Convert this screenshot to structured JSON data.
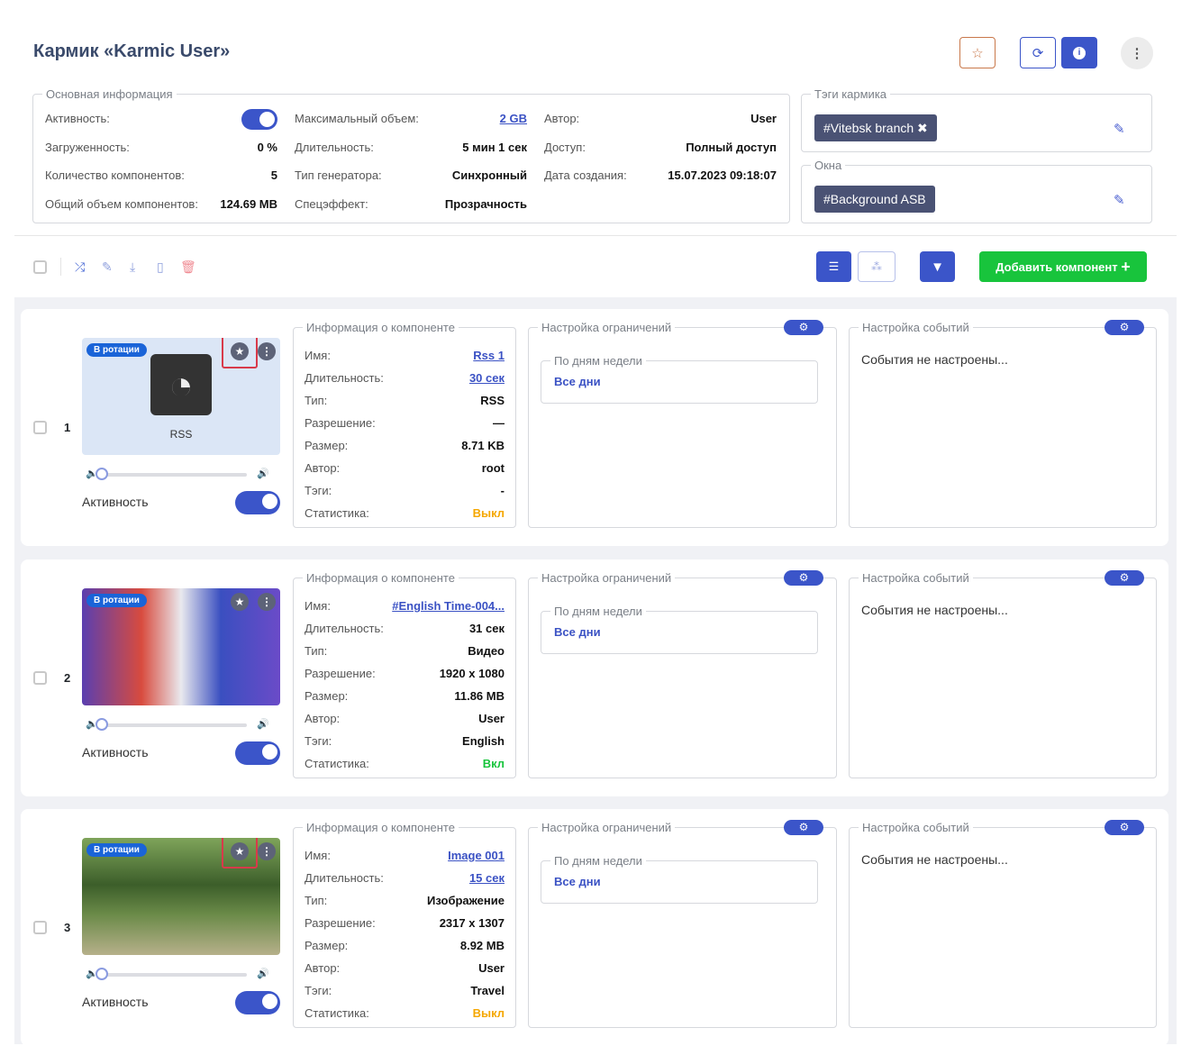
{
  "header": {
    "title": "Кармик «Karmic User»",
    "icons": [
      "star-outline-icon",
      "refresh-icon",
      "info-icon",
      "more-vertical-icon"
    ]
  },
  "basic": {
    "legend": "Основная информация",
    "col1": [
      {
        "label": "Активность:",
        "toggle": true
      },
      {
        "label": "Загруженность:",
        "value": "0 %"
      },
      {
        "label": "Количество компонентов:",
        "value": "5"
      },
      {
        "label": "Общий объем компонентов:",
        "value": "124.69 MB"
      }
    ],
    "col2": [
      {
        "label": "Максимальный объем:",
        "value": "2 GB",
        "link": true
      },
      {
        "label": "Длительность:",
        "value": "5 мин 1 сек"
      },
      {
        "label": "Тип генератора:",
        "value": "Синхронный"
      },
      {
        "label": "Спецэффект:",
        "value": "Прозрачность"
      }
    ],
    "col3": [
      {
        "label": "Автор:",
        "value": "User"
      },
      {
        "label": "Доступ:",
        "value": "Полный доступ"
      },
      {
        "label": "Дата создания:",
        "value": "15.07.2023 09:18:07"
      }
    ]
  },
  "tags": {
    "legend": "Тэги кармика",
    "items": [
      "#Vitebsk branch"
    ]
  },
  "windows": {
    "legend": "Окна",
    "items": [
      "#Background ASB"
    ]
  },
  "toolbar": {
    "add_label": "Добавить компонент",
    "icons": [
      "shuffle-icon",
      "edit-icon",
      "download-icon",
      "file-icon",
      "trash-icon",
      "list-view-icon",
      "tree-view-icon",
      "filter-icon"
    ]
  },
  "colors": {
    "accent": "#3b55c9",
    "green": "#18c43c",
    "orange": "#f5a700",
    "tag": "#4a5274"
  },
  "components": [
    {
      "num": "1",
      "badge": "В ротации",
      "thumb": "rss",
      "thumb_label": "RSS",
      "active_label": "Активность",
      "volume": 0,
      "starred": true,
      "info_legend": "Информация о компоненте",
      "info": [
        [
          "Имя:",
          "Rss 1"
        ],
        [
          "Длительность:",
          "30 сек"
        ],
        [
          "Тип:",
          "RSS"
        ],
        [
          "Разрешение:",
          "—"
        ],
        [
          "Размер:",
          "8.71 KB"
        ],
        [
          "Автор:",
          "root"
        ],
        [
          "Тэги:",
          "-"
        ],
        [
          "Статистика:",
          "Выкл"
        ]
      ],
      "restrict_legend": "Настройка ограничений",
      "days_legend": "По дням недели",
      "days": "Все дни",
      "events_legend": "Настройка событий",
      "events": "События не настроены..."
    },
    {
      "num": "2",
      "badge": "В ротации",
      "thumb": "video",
      "thumb_label": "",
      "active_label": "Активность",
      "volume": 0,
      "starred": false,
      "info_legend": "Информация о компоненте",
      "info": [
        [
          "Имя:",
          "#English Time-004..."
        ],
        [
          "Длительность:",
          "31 сек"
        ],
        [
          "Тип:",
          "Видео"
        ],
        [
          "Разрешение:",
          "1920 x 1080"
        ],
        [
          "Размер:",
          "11.86 MB"
        ],
        [
          "Автор:",
          "User"
        ],
        [
          "Тэги:",
          "English"
        ],
        [
          "Статистика:",
          "Вкл"
        ]
      ],
      "restrict_legend": "Настройка ограничений",
      "days_legend": "По дням недели",
      "days": "Все дни",
      "events_legend": "Настройка событий",
      "events": "События не настроены..."
    },
    {
      "num": "3",
      "badge": "В ротации",
      "thumb": "image",
      "thumb_label": "",
      "active_label": "Активность",
      "volume": 0,
      "starred": true,
      "info_legend": "Информация о компоненте",
      "info": [
        [
          "Имя:",
          "Image 001"
        ],
        [
          "Длительность:",
          "15 сек"
        ],
        [
          "Тип:",
          "Изображение"
        ],
        [
          "Разрешение:",
          "2317 x 1307"
        ],
        [
          "Размер:",
          "8.92 MB"
        ],
        [
          "Автор:",
          "User"
        ],
        [
          "Тэги:",
          "Travel"
        ],
        [
          "Статистика:",
          "Выкл"
        ]
      ],
      "restrict_legend": "Настройка ограничений",
      "days_legend": "По дням недели",
      "days": "Все дни",
      "events_legend": "Настройка событий",
      "events": "События не настроены..."
    }
  ]
}
